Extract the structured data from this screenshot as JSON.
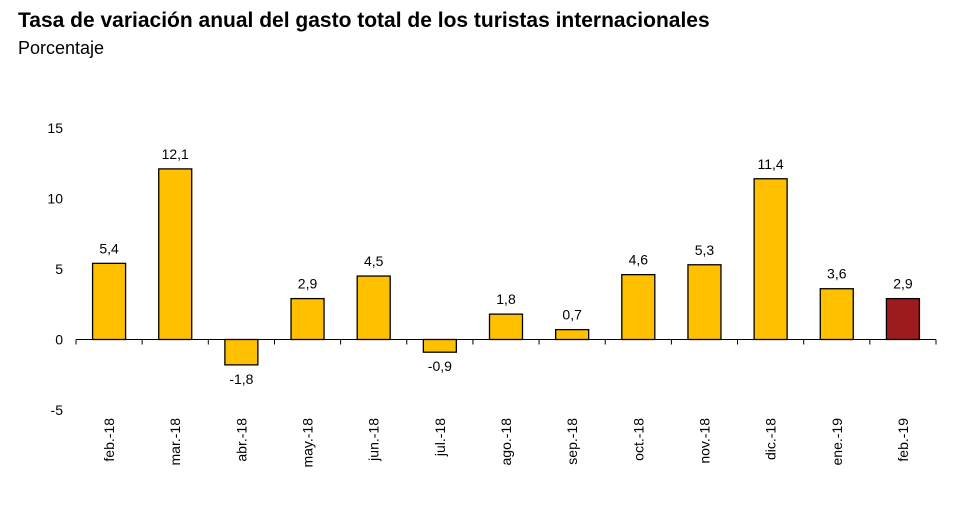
{
  "chart_data": {
    "type": "bar",
    "title": "Tasa de variación anual del gasto total de los turistas internacionales",
    "subtitle": "Porcentaje",
    "categories": [
      "feb.-18",
      "mar.-18",
      "abr.-18",
      "may.-18",
      "jun.-18",
      "jul.-18",
      "ago.-18",
      "sep.-18",
      "oct.-18",
      "nov.-18",
      "dic.-18",
      "ene.-19",
      "feb.-19"
    ],
    "values": [
      5.4,
      12.1,
      -1.8,
      2.9,
      4.5,
      -0.9,
      1.8,
      0.7,
      4.6,
      5.3,
      11.4,
      3.6,
      2.9
    ],
    "value_labels": [
      "5,4",
      "12,1",
      "-1,8",
      "2,9",
      "4,5",
      "-0,9",
      "1,8",
      "0,7",
      "4,6",
      "5,3",
      "11,4",
      "3,6",
      "2,9"
    ],
    "y_ticks": [
      15,
      10,
      5,
      0,
      -5
    ],
    "ylim": [
      -5,
      15
    ],
    "xlabel": "",
    "ylabel": "",
    "grid": false,
    "legend": "none",
    "bar_color": "#FFC000",
    "highlight_color": "#9B1B1E",
    "highlight_index": 12
  }
}
